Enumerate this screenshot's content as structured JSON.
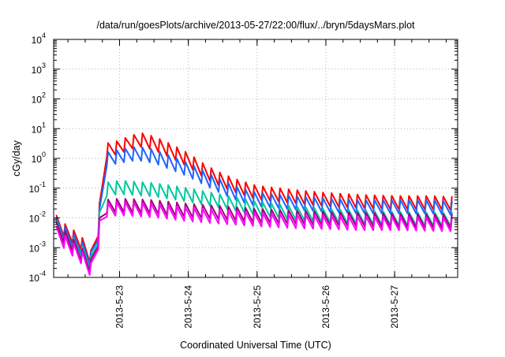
{
  "chart_data": {
    "type": "line",
    "title": "/data/run/goesPlots/archive/2013-05-27/22:00/flux/../bryn/5daysMars.plot",
    "xlabel": "Coordinated Universal Time (UTC)",
    "ylabel": "cGy/day",
    "y_scale": "log",
    "ylim": [
      0.0001,
      10000
    ],
    "xlim": [
      "2013-05-22T01:00",
      "2013-05-27T22:00"
    ],
    "grid": true,
    "x_ticks": [
      "2013-5-23",
      "2013-5-24",
      "2013-5-25",
      "2013-5-26",
      "2013-5-27"
    ],
    "y_ticks": [
      {
        "base": "10",
        "exp": "-4",
        "value": 0.0001
      },
      {
        "base": "10",
        "exp": "-3",
        "value": 0.001
      },
      {
        "base": "10",
        "exp": "-2",
        "value": 0.01
      },
      {
        "base": "10",
        "exp": "-1",
        "value": 0.1
      },
      {
        "base": "10",
        "exp": "0",
        "value": 1
      },
      {
        "base": "10",
        "exp": "1",
        "value": 10
      },
      {
        "base": "10",
        "exp": "2",
        "value": 100
      },
      {
        "base": "10",
        "exp": "3",
        "value": 1000
      },
      {
        "base": "10",
        "exp": "4",
        "value": 10000
      }
    ],
    "series": [
      {
        "color": "#ff0000",
        "points": [
          [
            "2013-05-22T02:00",
            0.012
          ],
          [
            "2013-05-22T06:00",
            0.005
          ],
          [
            "2013-05-22T10:00",
            0.003
          ],
          [
            "2013-05-22T14:00",
            0.0008
          ],
          [
            "2013-05-22T15:00",
            0.0003
          ],
          [
            "2013-05-22T16:00",
            0.0012
          ],
          [
            "2013-05-22T17:00",
            0.03
          ],
          [
            "2013-05-22T18:00",
            3
          ],
          [
            "2013-05-23T00:00",
            4
          ],
          [
            "2013-05-23T04:00",
            6
          ],
          [
            "2013-05-23T08:00",
            7
          ],
          [
            "2013-05-23T12:00",
            5.5
          ],
          [
            "2013-05-23T18:00",
            3
          ],
          [
            "2013-05-24T00:00",
            1.5
          ],
          [
            "2013-05-24T06:00",
            0.6
          ],
          [
            "2013-05-24T12:00",
            0.3
          ],
          [
            "2013-05-24T18:00",
            0.18
          ],
          [
            "2013-05-25T00:00",
            0.12
          ],
          [
            "2013-05-25T12:00",
            0.09
          ],
          [
            "2013-05-26T00:00",
            0.07
          ],
          [
            "2013-05-26T12:00",
            0.06
          ],
          [
            "2013-05-27T00:00",
            0.055
          ],
          [
            "2013-05-27T12:00",
            0.055
          ],
          [
            "2013-05-27T22:00",
            0.05
          ]
        ]
      },
      {
        "color": "#1e64ff",
        "points": [
          [
            "2013-05-22T02:00",
            0.01
          ],
          [
            "2013-05-22T06:00",
            0.004
          ],
          [
            "2013-05-22T10:00",
            0.002
          ],
          [
            "2013-05-22T14:00",
            0.0007
          ],
          [
            "2013-05-22T15:00",
            0.0003
          ],
          [
            "2013-05-22T16:00",
            0.0011
          ],
          [
            "2013-05-22T17:00",
            0.02
          ],
          [
            "2013-05-22T18:00",
            1.5
          ],
          [
            "2013-05-23T00:00",
            2
          ],
          [
            "2013-05-23T06:00",
            2.5
          ],
          [
            "2013-05-23T12:00",
            2
          ],
          [
            "2013-05-23T18:00",
            1.2
          ],
          [
            "2013-05-24T00:00",
            0.7
          ],
          [
            "2013-05-24T06:00",
            0.35
          ],
          [
            "2013-05-24T12:00",
            0.18
          ],
          [
            "2013-05-24T18:00",
            0.1
          ],
          [
            "2013-05-25T00:00",
            0.07
          ],
          [
            "2013-05-25T12:00",
            0.055
          ],
          [
            "2013-05-26T00:00",
            0.045
          ],
          [
            "2013-05-26T12:00",
            0.04
          ],
          [
            "2013-05-27T00:00",
            0.04
          ],
          [
            "2013-05-27T12:00",
            0.04
          ],
          [
            "2013-05-27T22:00",
            0.035
          ]
        ]
      },
      {
        "color": "#00c8a0",
        "points": [
          [
            "2013-05-22T02:00",
            0.008
          ],
          [
            "2013-05-22T06:00",
            0.003
          ],
          [
            "2013-05-22T10:00",
            0.0015
          ],
          [
            "2013-05-22T14:00",
            0.0005
          ],
          [
            "2013-05-22T15:00",
            0.00025
          ],
          [
            "2013-05-22T16:00",
            0.0009
          ],
          [
            "2013-05-22T17:00",
            0.015
          ],
          [
            "2013-05-22T18:00",
            0.15
          ],
          [
            "2013-05-23T00:00",
            0.18
          ],
          [
            "2013-05-23T12:00",
            0.15
          ],
          [
            "2013-05-24T00:00",
            0.1
          ],
          [
            "2013-05-24T12:00",
            0.06
          ],
          [
            "2013-05-25T00:00",
            0.035
          ],
          [
            "2013-05-25T12:00",
            0.025
          ],
          [
            "2013-05-26T00:00",
            0.02
          ],
          [
            "2013-05-26T12:00",
            0.018
          ],
          [
            "2013-05-27T00:00",
            0.016
          ],
          [
            "2013-05-27T22:00",
            0.015
          ]
        ]
      },
      {
        "color": "#a00078",
        "points": [
          [
            "2013-05-22T02:00",
            0.007
          ],
          [
            "2013-05-22T06:00",
            0.003
          ],
          [
            "2013-05-22T10:00",
            0.0012
          ],
          [
            "2013-05-22T14:00",
            0.0004
          ],
          [
            "2013-05-22T15:00",
            0.0002
          ],
          [
            "2013-05-22T16:00",
            0.0008
          ],
          [
            "2013-05-22T17:00",
            0.01
          ],
          [
            "2013-05-22T18:00",
            0.04
          ],
          [
            "2013-05-23T00:00",
            0.045
          ],
          [
            "2013-05-23T12:00",
            0.04
          ],
          [
            "2013-05-24T00:00",
            0.03
          ],
          [
            "2013-05-24T12:00",
            0.025
          ],
          [
            "2013-05-25T00:00",
            0.02
          ],
          [
            "2013-05-25T12:00",
            0.018
          ],
          [
            "2013-05-26T00:00",
            0.016
          ],
          [
            "2013-05-26T12:00",
            0.015
          ],
          [
            "2013-05-27T00:00",
            0.014
          ],
          [
            "2013-05-27T22:00",
            0.013
          ]
        ]
      },
      {
        "color": "#ff00ff",
        "points": [
          [
            "2013-05-22T02:00",
            0.005
          ],
          [
            "2013-05-22T06:00",
            0.002
          ],
          [
            "2013-05-22T10:00",
            0.001
          ],
          [
            "2013-05-22T14:00",
            0.0003
          ],
          [
            "2013-05-22T15:00",
            0.00015
          ],
          [
            "2013-05-22T16:00",
            0.0006
          ],
          [
            "2013-05-22T17:00",
            0.008
          ],
          [
            "2013-05-22T18:00",
            0.03
          ],
          [
            "2013-05-23T00:00",
            0.035
          ],
          [
            "2013-05-23T12:00",
            0.03
          ],
          [
            "2013-05-24T00:00",
            0.022
          ],
          [
            "2013-05-24T12:00",
            0.018
          ],
          [
            "2013-05-25T00:00",
            0.015
          ],
          [
            "2013-05-25T12:00",
            0.013
          ],
          [
            "2013-05-26T00:00",
            0.012
          ],
          [
            "2013-05-26T12:00",
            0.011
          ],
          [
            "2013-05-27T00:00",
            0.011
          ],
          [
            "2013-05-27T22:00",
            0.01
          ]
        ]
      }
    ]
  }
}
